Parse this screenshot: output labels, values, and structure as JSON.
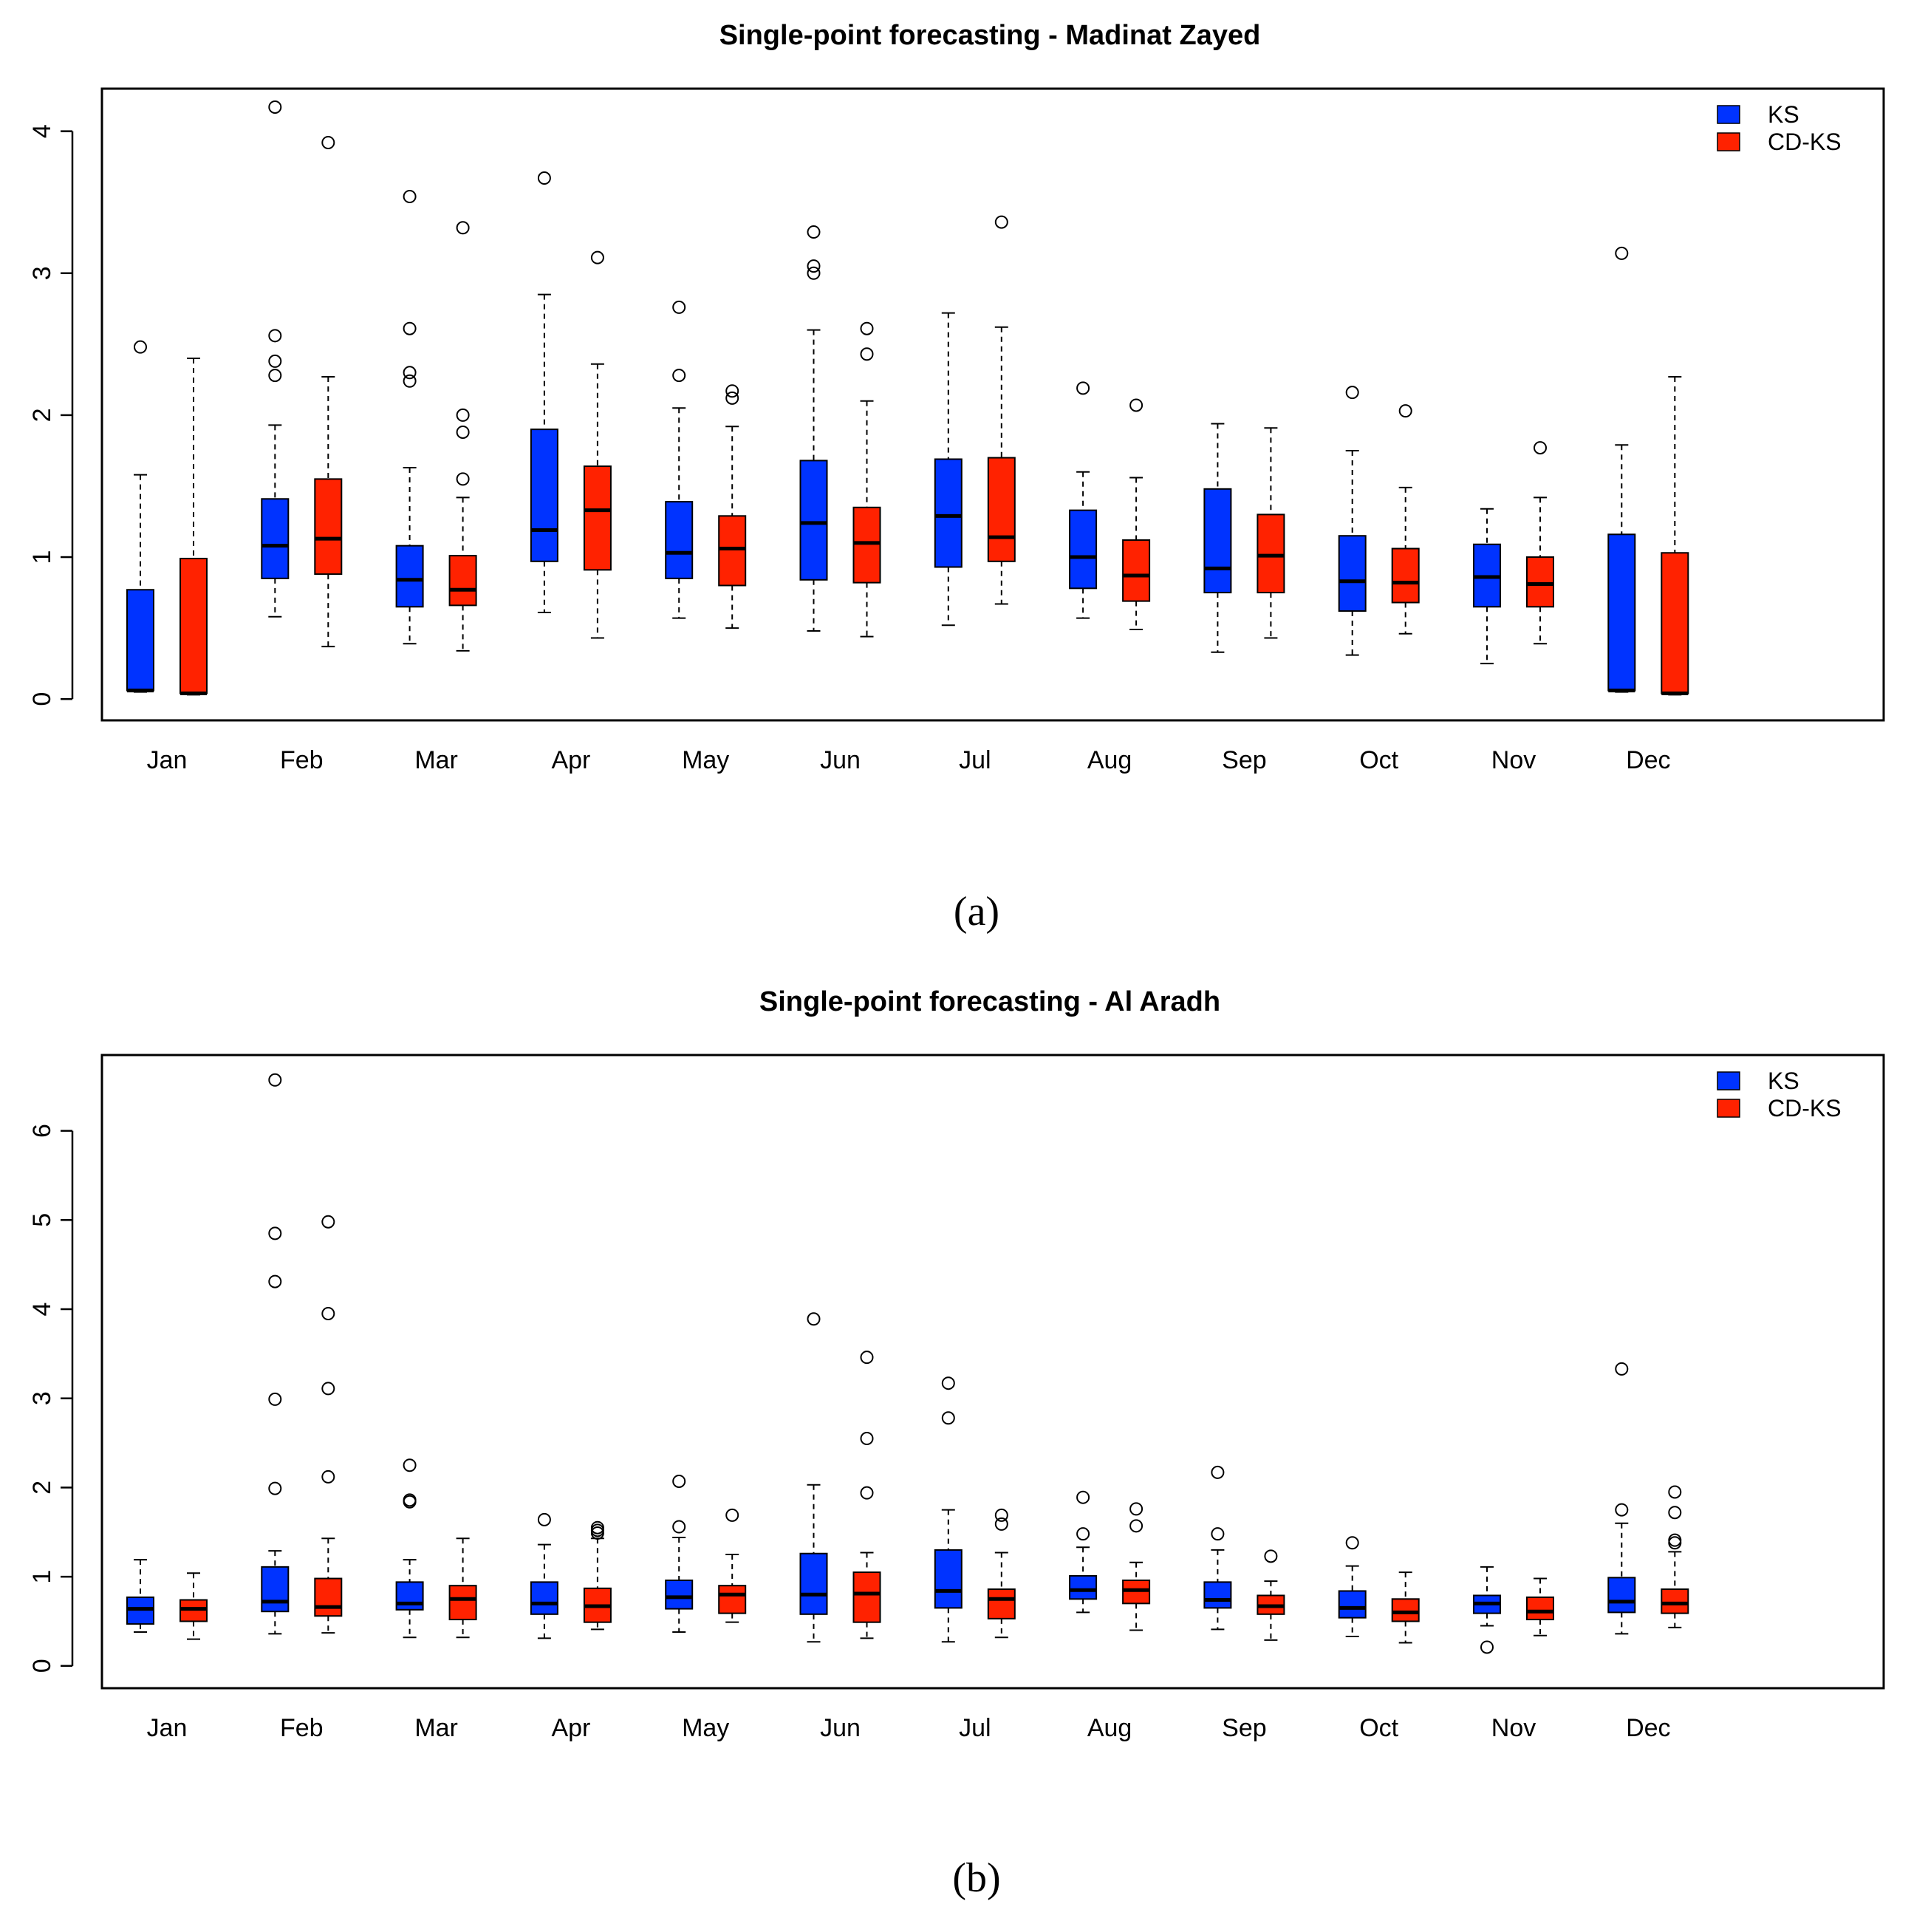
{
  "chart_data": [
    {
      "type": "boxplot",
      "panel_label": "(a)",
      "title": "Single-point forecasting - Madinat Zayed",
      "xlabel": "",
      "ylabel": "",
      "ylim": [
        -0.15,
        4.3
      ],
      "yticks": [
        0,
        1,
        2,
        3,
        4
      ],
      "categories": [
        "Jan",
        "Feb",
        "Mar",
        "Apr",
        "May",
        "Jun",
        "Jul",
        "Aug",
        "Sep",
        "Oct",
        "Nov",
        "Dec"
      ],
      "legend": {
        "position": "top-right",
        "entries": [
          {
            "label": "KS",
            "color": "#0033ff"
          },
          {
            "label": "CD-KS",
            "color": "#ff2200"
          }
        ]
      },
      "series": [
        {
          "name": "KS",
          "color": "#0033ff",
          "boxes": [
            {
              "lower": 0.05,
              "q1": 0.06,
              "median": 0.06,
              "q3": 0.77,
              "upper": 1.58,
              "outliers": [
                2.48
              ]
            },
            {
              "lower": 0.58,
              "q1": 0.85,
              "median": 1.08,
              "q3": 1.41,
              "upper": 1.93,
              "outliers": [
                2.28,
                2.38,
                2.56,
                4.17
              ]
            },
            {
              "lower": 0.39,
              "q1": 0.65,
              "median": 0.84,
              "q3": 1.08,
              "upper": 1.63,
              "outliers": [
                2.24,
                2.3,
                2.61,
                3.54
              ]
            },
            {
              "lower": 0.61,
              "q1": 0.97,
              "median": 1.19,
              "q3": 1.9,
              "upper": 2.85,
              "outliers": [
                3.67
              ]
            },
            {
              "lower": 0.57,
              "q1": 0.85,
              "median": 1.03,
              "q3": 1.39,
              "upper": 2.05,
              "outliers": [
                2.28,
                2.76
              ]
            },
            {
              "lower": 0.48,
              "q1": 0.84,
              "median": 1.24,
              "q3": 1.68,
              "upper": 2.6,
              "outliers": [
                3.0,
                3.05,
                3.29
              ]
            },
            {
              "lower": 0.52,
              "q1": 0.93,
              "median": 1.29,
              "q3": 1.69,
              "upper": 2.72,
              "outliers": []
            },
            {
              "lower": 0.57,
              "q1": 0.78,
              "median": 1.0,
              "q3": 1.33,
              "upper": 1.6,
              "outliers": [
                2.19
              ]
            },
            {
              "lower": 0.33,
              "q1": 0.75,
              "median": 0.92,
              "q3": 1.48,
              "upper": 1.94,
              "outliers": []
            },
            {
              "lower": 0.31,
              "q1": 0.62,
              "median": 0.83,
              "q3": 1.15,
              "upper": 1.75,
              "outliers": [
                2.16
              ]
            },
            {
              "lower": 0.25,
              "q1": 0.65,
              "median": 0.86,
              "q3": 1.09,
              "upper": 1.34,
              "outliers": []
            },
            {
              "lower": 0.05,
              "q1": 0.06,
              "median": 0.06,
              "q3": 1.16,
              "upper": 1.79,
              "outliers": [
                3.14
              ]
            }
          ]
        },
        {
          "name": "CD-KS",
          "color": "#ff2200",
          "boxes": [
            {
              "lower": 0.03,
              "q1": 0.04,
              "median": 0.04,
              "q3": 0.99,
              "upper": 2.4,
              "outliers": []
            },
            {
              "lower": 0.37,
              "q1": 0.88,
              "median": 1.13,
              "q3": 1.55,
              "upper": 2.27,
              "outliers": [
                3.92
              ]
            },
            {
              "lower": 0.34,
              "q1": 0.66,
              "median": 0.77,
              "q3": 1.01,
              "upper": 1.42,
              "outliers": [
                1.55,
                1.88,
                2.0,
                3.32
              ]
            },
            {
              "lower": 0.43,
              "q1": 0.91,
              "median": 1.33,
              "q3": 1.64,
              "upper": 2.36,
              "outliers": [
                3.11
              ]
            },
            {
              "lower": 0.5,
              "q1": 0.8,
              "median": 1.06,
              "q3": 1.29,
              "upper": 1.92,
              "outliers": [
                2.12,
                2.17
              ]
            },
            {
              "lower": 0.44,
              "q1": 0.82,
              "median": 1.1,
              "q3": 1.35,
              "upper": 2.1,
              "outliers": [
                2.43,
                2.61
              ]
            },
            {
              "lower": 0.67,
              "q1": 0.97,
              "median": 1.14,
              "q3": 1.7,
              "upper": 2.62,
              "outliers": [
                3.36
              ]
            },
            {
              "lower": 0.49,
              "q1": 0.69,
              "median": 0.87,
              "q3": 1.12,
              "upper": 1.56,
              "outliers": [
                2.07
              ]
            },
            {
              "lower": 0.43,
              "q1": 0.75,
              "median": 1.01,
              "q3": 1.3,
              "upper": 1.91,
              "outliers": []
            },
            {
              "lower": 0.46,
              "q1": 0.68,
              "median": 0.82,
              "q3": 1.06,
              "upper": 1.49,
              "outliers": [
                2.03
              ]
            },
            {
              "lower": 0.39,
              "q1": 0.65,
              "median": 0.81,
              "q3": 1.0,
              "upper": 1.42,
              "outliers": [
                1.77
              ]
            },
            {
              "lower": 0.03,
              "q1": 0.04,
              "median": 0.04,
              "q3": 1.03,
              "upper": 2.27,
              "outliers": []
            }
          ]
        }
      ]
    },
    {
      "type": "boxplot",
      "panel_label": "(b)",
      "title": "Single-point forecasting - Al Aradh",
      "xlabel": "",
      "ylabel": "",
      "ylim": [
        -0.25,
        6.85
      ],
      "yticks": [
        0,
        1,
        2,
        3,
        4,
        5,
        6
      ],
      "categories": [
        "Jan",
        "Feb",
        "Mar",
        "Apr",
        "May",
        "Jun",
        "Jul",
        "Aug",
        "Sep",
        "Oct",
        "Nov",
        "Dec"
      ],
      "legend": {
        "position": "top-right",
        "entries": [
          {
            "label": "KS",
            "color": "#0033ff"
          },
          {
            "label": "CD-KS",
            "color": "#ff2200"
          }
        ]
      },
      "series": [
        {
          "name": "KS",
          "color": "#0033ff",
          "boxes": [
            {
              "lower": 0.38,
              "q1": 0.47,
              "median": 0.64,
              "q3": 0.77,
              "upper": 1.19,
              "outliers": []
            },
            {
              "lower": 0.36,
              "q1": 0.61,
              "median": 0.72,
              "q3": 1.11,
              "upper": 1.29,
              "outliers": [
                1.99,
                2.99,
                4.31,
                4.85,
                6.57
              ]
            },
            {
              "lower": 0.32,
              "q1": 0.63,
              "median": 0.7,
              "q3": 0.94,
              "upper": 1.19,
              "outliers": [
                1.84,
                1.86,
                2.25
              ]
            },
            {
              "lower": 0.31,
              "q1": 0.58,
              "median": 0.7,
              "q3": 0.94,
              "upper": 1.36,
              "outliers": [
                1.64
              ]
            },
            {
              "lower": 0.38,
              "q1": 0.64,
              "median": 0.77,
              "q3": 0.96,
              "upper": 1.44,
              "outliers": [
                1.56,
                2.07
              ]
            },
            {
              "lower": 0.27,
              "q1": 0.58,
              "median": 0.8,
              "q3": 1.26,
              "upper": 2.03,
              "outliers": [
                3.89
              ]
            },
            {
              "lower": 0.27,
              "q1": 0.65,
              "median": 0.84,
              "q3": 1.3,
              "upper": 1.75,
              "outliers": [
                2.78,
                3.17
              ]
            },
            {
              "lower": 0.6,
              "q1": 0.75,
              "median": 0.85,
              "q3": 1.01,
              "upper": 1.33,
              "outliers": [
                1.48,
                1.89
              ]
            },
            {
              "lower": 0.41,
              "q1": 0.65,
              "median": 0.74,
              "q3": 0.94,
              "upper": 1.3,
              "outliers": [
                1.48,
                2.17
              ]
            },
            {
              "lower": 0.33,
              "q1": 0.54,
              "median": 0.65,
              "q3": 0.84,
              "upper": 1.12,
              "outliers": [
                1.38
              ]
            },
            {
              "lower": 0.45,
              "q1": 0.59,
              "median": 0.7,
              "q3": 0.79,
              "upper": 1.11,
              "outliers": [
                0.21
              ]
            },
            {
              "lower": 0.36,
              "q1": 0.6,
              "median": 0.72,
              "q3": 0.99,
              "upper": 1.6,
              "outliers": [
                1.75,
                3.33
              ]
            }
          ]
        },
        {
          "name": "CD-KS",
          "color": "#ff2200",
          "boxes": [
            {
              "lower": 0.3,
              "q1": 0.5,
              "median": 0.64,
              "q3": 0.74,
              "upper": 1.04,
              "outliers": []
            },
            {
              "lower": 0.37,
              "q1": 0.56,
              "median": 0.66,
              "q3": 0.98,
              "upper": 1.43,
              "outliers": [
                2.12,
                3.11,
                3.95,
                4.98
              ]
            },
            {
              "lower": 0.32,
              "q1": 0.52,
              "median": 0.75,
              "q3": 0.9,
              "upper": 1.43,
              "outliers": []
            },
            {
              "lower": 0.41,
              "q1": 0.49,
              "median": 0.67,
              "q3": 0.87,
              "upper": 1.43,
              "outliers": [
                1.49,
                1.52,
                1.55
              ]
            },
            {
              "lower": 0.49,
              "q1": 0.59,
              "median": 0.8,
              "q3": 0.9,
              "upper": 1.25,
              "outliers": [
                1.69
              ]
            },
            {
              "lower": 0.31,
              "q1": 0.49,
              "median": 0.81,
              "q3": 1.05,
              "upper": 1.27,
              "outliers": [
                1.94,
                2.55,
                3.46
              ]
            },
            {
              "lower": 0.32,
              "q1": 0.53,
              "median": 0.75,
              "q3": 0.86,
              "upper": 1.27,
              "outliers": [
                1.59,
                1.69
              ]
            },
            {
              "lower": 0.4,
              "q1": 0.7,
              "median": 0.85,
              "q3": 0.96,
              "upper": 1.16,
              "outliers": [
                1.57,
                1.76
              ]
            },
            {
              "lower": 0.29,
              "q1": 0.58,
              "median": 0.67,
              "q3": 0.79,
              "upper": 0.95,
              "outliers": [
                1.23
              ]
            },
            {
              "lower": 0.26,
              "q1": 0.5,
              "median": 0.6,
              "q3": 0.75,
              "upper": 1.05,
              "outliers": []
            },
            {
              "lower": 0.34,
              "q1": 0.52,
              "median": 0.61,
              "q3": 0.77,
              "upper": 0.98,
              "outliers": []
            },
            {
              "lower": 0.43,
              "q1": 0.59,
              "median": 0.7,
              "q3": 0.86,
              "upper": 1.28,
              "outliers": [
                1.38,
                1.41,
                1.72,
                1.95
              ]
            }
          ]
        }
      ]
    }
  ]
}
